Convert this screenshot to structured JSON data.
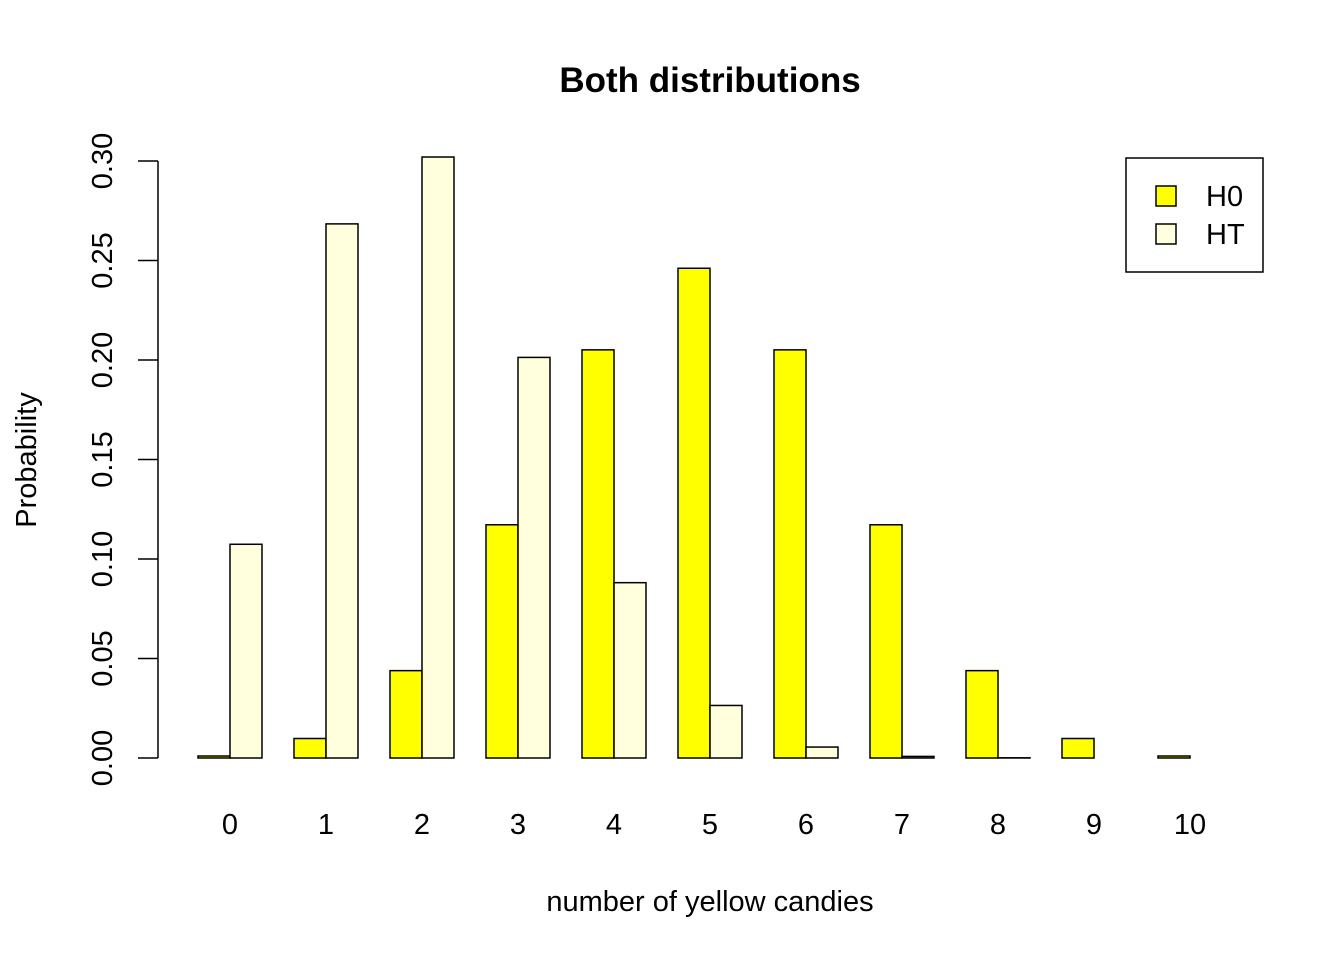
{
  "chart_data": {
    "type": "bar",
    "title": "Both distributions",
    "xlabel": "number of yellow candies",
    "ylabel": "Probability",
    "categories": [
      "0",
      "1",
      "2",
      "3",
      "4",
      "5",
      "6",
      "7",
      "8",
      "9",
      "10"
    ],
    "series": [
      {
        "name": "H0",
        "color": "#FFFF00",
        "values": [
          0.001,
          0.0098,
          0.0439,
          0.1172,
          0.2051,
          0.2461,
          0.2051,
          0.1172,
          0.0439,
          0.0098,
          0.001
        ]
      },
      {
        "name": "HT",
        "color": "#FFFFDD",
        "values": [
          0.1074,
          0.2684,
          0.302,
          0.2013,
          0.0881,
          0.0264,
          0.0055,
          0.0008,
          0.0001,
          0.0,
          0.0
        ]
      }
    ],
    "ylim": [
      0,
      0.3
    ],
    "yticks": [
      "0.00",
      "0.05",
      "0.10",
      "0.15",
      "0.20",
      "0.25",
      "0.30"
    ],
    "ytick_values": [
      0,
      0.05,
      0.1,
      0.15,
      0.2,
      0.25,
      0.3
    ],
    "legend_position": "top-right",
    "grid": false
  }
}
